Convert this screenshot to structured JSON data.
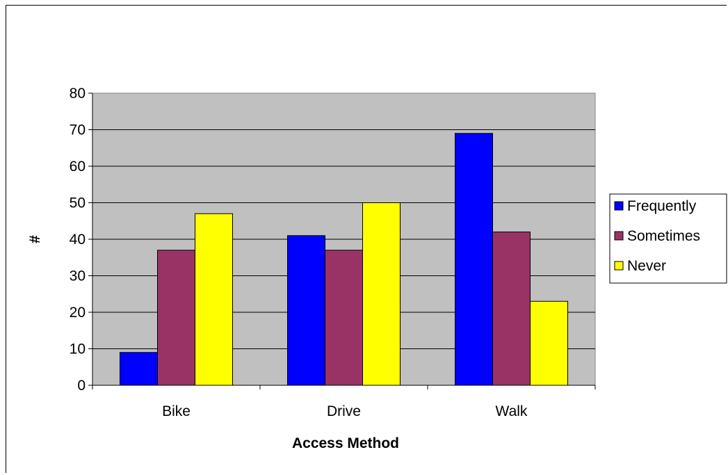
{
  "chart_data": {
    "type": "bar",
    "title": "",
    "xlabel": "Access Method",
    "ylabel": "#",
    "categories": [
      "Bike",
      "Drive",
      "Walk"
    ],
    "series": [
      {
        "name": "Frequently",
        "values": [
          9,
          41,
          69
        ],
        "color": "#0000ff"
      },
      {
        "name": "Sometimes",
        "values": [
          37,
          37,
          42
        ],
        "color": "#993366"
      },
      {
        "name": "Never",
        "values": [
          47,
          50,
          23
        ],
        "color": "#ffff00"
      }
    ],
    "ylim": [
      0,
      80
    ],
    "yticks": [
      0,
      10,
      20,
      30,
      40,
      50,
      60,
      70,
      80
    ],
    "grid": true,
    "plot_background": "#c0c0c0",
    "legend_position": "right"
  }
}
